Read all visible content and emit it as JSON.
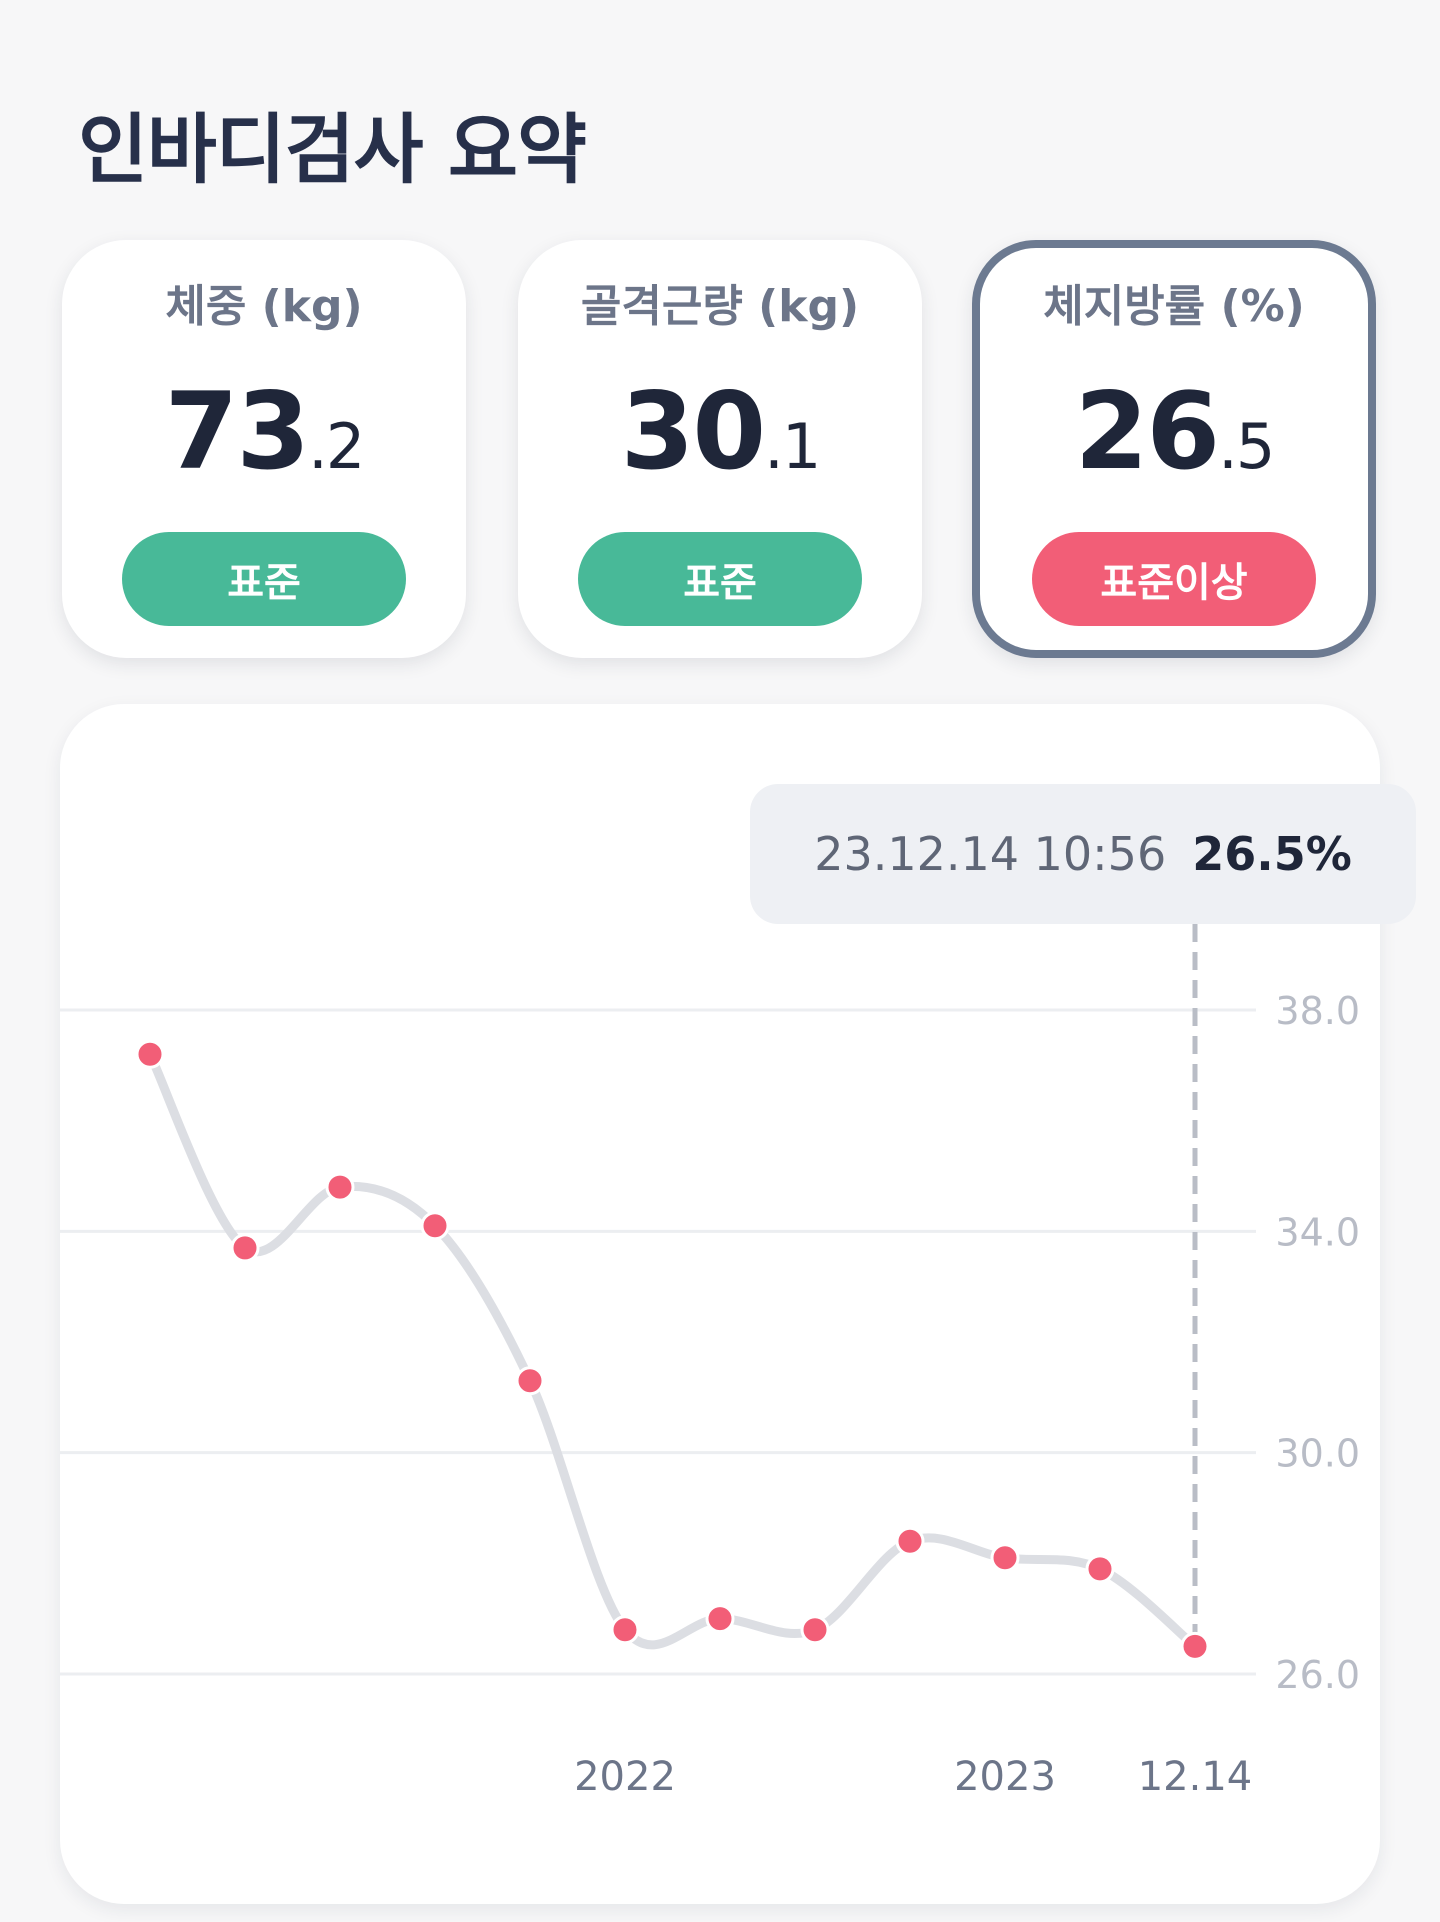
{
  "page": {
    "title": "인바디검사 요약"
  },
  "cards": [
    {
      "label": "체중 (kg)",
      "value_int": "73",
      "value_dec": "2",
      "status": "표준",
      "status_color": "#48b998"
    },
    {
      "label": "골격근량 (kg)",
      "value_int": "30",
      "value_dec": "1",
      "status": "표준",
      "status_color": "#48b998"
    },
    {
      "label": "체지방률 (%)",
      "value_int": "26",
      "value_dec": "5",
      "status": "표준이상",
      "status_color": "#f25e77"
    }
  ],
  "tooltip": {
    "timestamp": "23.12.14 10:56",
    "value": "26.5%"
  },
  "chart_data": {
    "type": "line",
    "series": [
      {
        "values": [
          37.2,
          33.7,
          34.8,
          34.1,
          31.3,
          26.8,
          27.0,
          26.8,
          28.4,
          28.1,
          27.9,
          26.5
        ]
      }
    ],
    "x_labels": [
      {
        "index": 5,
        "text": "2022"
      },
      {
        "index": 9,
        "text": "2023"
      },
      {
        "index": 11,
        "text": "12.14"
      }
    ],
    "y_ticks": [
      "38.0",
      "34.0",
      "30.0",
      "26.0"
    ],
    "y_tick_values": [
      38,
      34,
      30,
      26
    ],
    "ylim": [
      26,
      38
    ],
    "highlight_index": 11,
    "grid": true,
    "colors": {
      "line": "#dcdee3",
      "point": "#f25e77",
      "grid": "#eceef1",
      "guide": "#b9bdc6"
    }
  }
}
